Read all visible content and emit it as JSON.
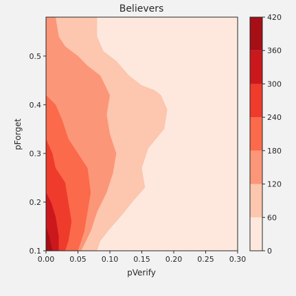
{
  "chart_data": {
    "type": "contour",
    "title": "Believers",
    "xlabel": "pVerify",
    "ylabel": "pForget",
    "xlim": [
      0.0,
      0.3
    ],
    "ylim": [
      0.1,
      0.58
    ],
    "xticks": [
      "0.00",
      "0.05",
      "0.10",
      "0.15",
      "0.20",
      "0.25",
      "0.30"
    ],
    "yticks": [
      "0.1",
      "0.2",
      "0.3",
      "0.4",
      "0.5"
    ],
    "colorbar": {
      "levels": [
        0,
        60,
        120,
        180,
        240,
        300,
        360,
        420
      ],
      "ticks": [
        "0",
        "60",
        "120",
        "180",
        "240",
        "300",
        "360",
        "420"
      ],
      "colors": [
        "#fee8de",
        "#fcc6af",
        "#fc9678",
        "#fb6a4a",
        "#ef3b2c",
        "#cb181d",
        "#a50f15"
      ]
    },
    "level_boundaries": [
      {
        "level_min": 60,
        "points": [
          [
            0.0,
            0.58
          ],
          [
            0.08,
            0.58
          ],
          [
            0.08,
            0.54
          ],
          [
            0.09,
            0.51
          ],
          [
            0.11,
            0.49
          ],
          [
            0.13,
            0.46
          ],
          [
            0.15,
            0.44
          ],
          [
            0.17,
            0.43
          ],
          [
            0.18,
            0.42
          ],
          [
            0.19,
            0.39
          ],
          [
            0.185,
            0.35
          ],
          [
            0.16,
            0.31
          ],
          [
            0.15,
            0.27
          ],
          [
            0.155,
            0.23
          ],
          [
            0.135,
            0.2
          ],
          [
            0.12,
            0.175
          ],
          [
            0.1,
            0.145
          ],
          [
            0.085,
            0.12
          ],
          [
            0.08,
            0.1
          ],
          [
            0.0,
            0.1
          ]
        ]
      },
      {
        "level_min": 120,
        "points": [
          [
            0.0,
            0.58
          ],
          [
            0.015,
            0.58
          ],
          [
            0.02,
            0.54
          ],
          [
            0.03,
            0.52
          ],
          [
            0.05,
            0.5
          ],
          [
            0.065,
            0.48
          ],
          [
            0.085,
            0.46
          ],
          [
            0.1,
            0.42
          ],
          [
            0.095,
            0.38
          ],
          [
            0.1,
            0.34
          ],
          [
            0.11,
            0.3
          ],
          [
            0.105,
            0.26
          ],
          [
            0.095,
            0.22
          ],
          [
            0.08,
            0.18
          ],
          [
            0.07,
            0.14
          ],
          [
            0.055,
            0.1
          ],
          [
            0.0,
            0.1
          ]
        ]
      },
      {
        "level_min": 180,
        "points": [
          [
            0.0,
            0.42
          ],
          [
            0.015,
            0.4
          ],
          [
            0.025,
            0.37
          ],
          [
            0.035,
            0.33
          ],
          [
            0.05,
            0.3
          ],
          [
            0.065,
            0.27
          ],
          [
            0.07,
            0.22
          ],
          [
            0.065,
            0.18
          ],
          [
            0.06,
            0.14
          ],
          [
            0.05,
            0.1
          ],
          [
            0.0,
            0.1
          ]
        ]
      },
      {
        "level_min": 240,
        "points": [
          [
            0.0,
            0.33
          ],
          [
            0.01,
            0.3
          ],
          [
            0.015,
            0.27
          ],
          [
            0.03,
            0.24
          ],
          [
            0.035,
            0.2
          ],
          [
            0.04,
            0.16
          ],
          [
            0.035,
            0.12
          ],
          [
            0.03,
            0.1
          ],
          [
            0.0,
            0.1
          ]
        ]
      },
      {
        "level_min": 300,
        "points": [
          [
            0.0,
            0.22
          ],
          [
            0.008,
            0.2
          ],
          [
            0.015,
            0.17
          ],
          [
            0.02,
            0.13
          ],
          [
            0.02,
            0.1
          ],
          [
            0.0,
            0.1
          ]
        ]
      },
      {
        "level_min": 360,
        "points": [
          [
            0.0,
            0.15
          ],
          [
            0.005,
            0.13
          ],
          [
            0.01,
            0.1
          ],
          [
            0.0,
            0.1
          ]
        ]
      }
    ]
  }
}
